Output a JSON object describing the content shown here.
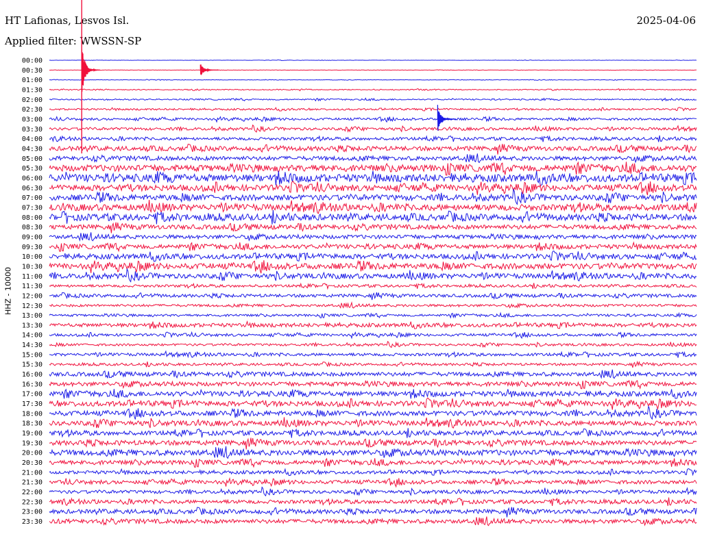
{
  "header": {
    "station": "HT Lafionas, Lesvos Isl.",
    "filter": "Applied filter: WWSSN-SP",
    "date": "2025-04-06"
  },
  "channel_label": "HHZ - 10000",
  "colors": {
    "blue": "#1a1ae6",
    "red": "#f0103c",
    "background": "#ffffff"
  },
  "chart_data": {
    "type": "line",
    "title": "HT Lafionas, Lesvos Isl.",
    "subtitle": "Applied filter: WWSSN-SP",
    "date": "2025-04-06",
    "ylabel": "HHZ - 10000",
    "xlabel": "",
    "row_minutes": 30,
    "row_labels": [
      "00:00",
      "00:30",
      "01:00",
      "01:30",
      "02:00",
      "02:30",
      "03:00",
      "03:30",
      "04:00",
      "04:30",
      "05:00",
      "05:30",
      "06:00",
      "06:30",
      "07:00",
      "07:30",
      "08:00",
      "08:30",
      "09:00",
      "09:30",
      "10:00",
      "10:30",
      "11:00",
      "11:30",
      "12:00",
      "12:30",
      "13:00",
      "13:30",
      "14:00",
      "14:30",
      "15:00",
      "15:30",
      "16:00",
      "16:30",
      "17:00",
      "17:30",
      "18:00",
      "18:30",
      "19:00",
      "19:30",
      "20:00",
      "20:30",
      "21:00",
      "21:30",
      "22:00",
      "22:30",
      "23:00",
      "23:30"
    ],
    "row_colors": [
      "blue",
      "red"
    ],
    "noise_level": [
      0.2,
      0.2,
      0.3,
      0.6,
      0.9,
      1.2,
      1.6,
      1.9,
      2.0,
      3.1,
      3.0,
      4.5,
      5.2,
      4.2,
      4.0,
      4.3,
      4.4,
      3.2,
      2.8,
      3.0,
      3.5,
      4.0,
      3.4,
      1.8,
      2.2,
      1.8,
      1.6,
      2.6,
      1.8,
      1.6,
      2.0,
      1.7,
      2.9,
      3.0,
      3.4,
      3.6,
      3.4,
      3.4,
      3.0,
      3.4,
      4.0,
      3.0,
      2.3,
      2.6,
      2.3,
      2.6,
      3.0,
      3.0
    ],
    "events": [
      {
        "label": "00:00",
        "minute": 1.5,
        "amplitude": 40,
        "peak_row": "00:30"
      },
      {
        "label": "00:30",
        "minute": 7.0,
        "amplitude": 10,
        "peak_row": "00:30"
      },
      {
        "label": "03:00",
        "minute": 18.0,
        "amplitude": 22,
        "peak_row": "03:00"
      }
    ],
    "grid": false,
    "legend": "none"
  }
}
